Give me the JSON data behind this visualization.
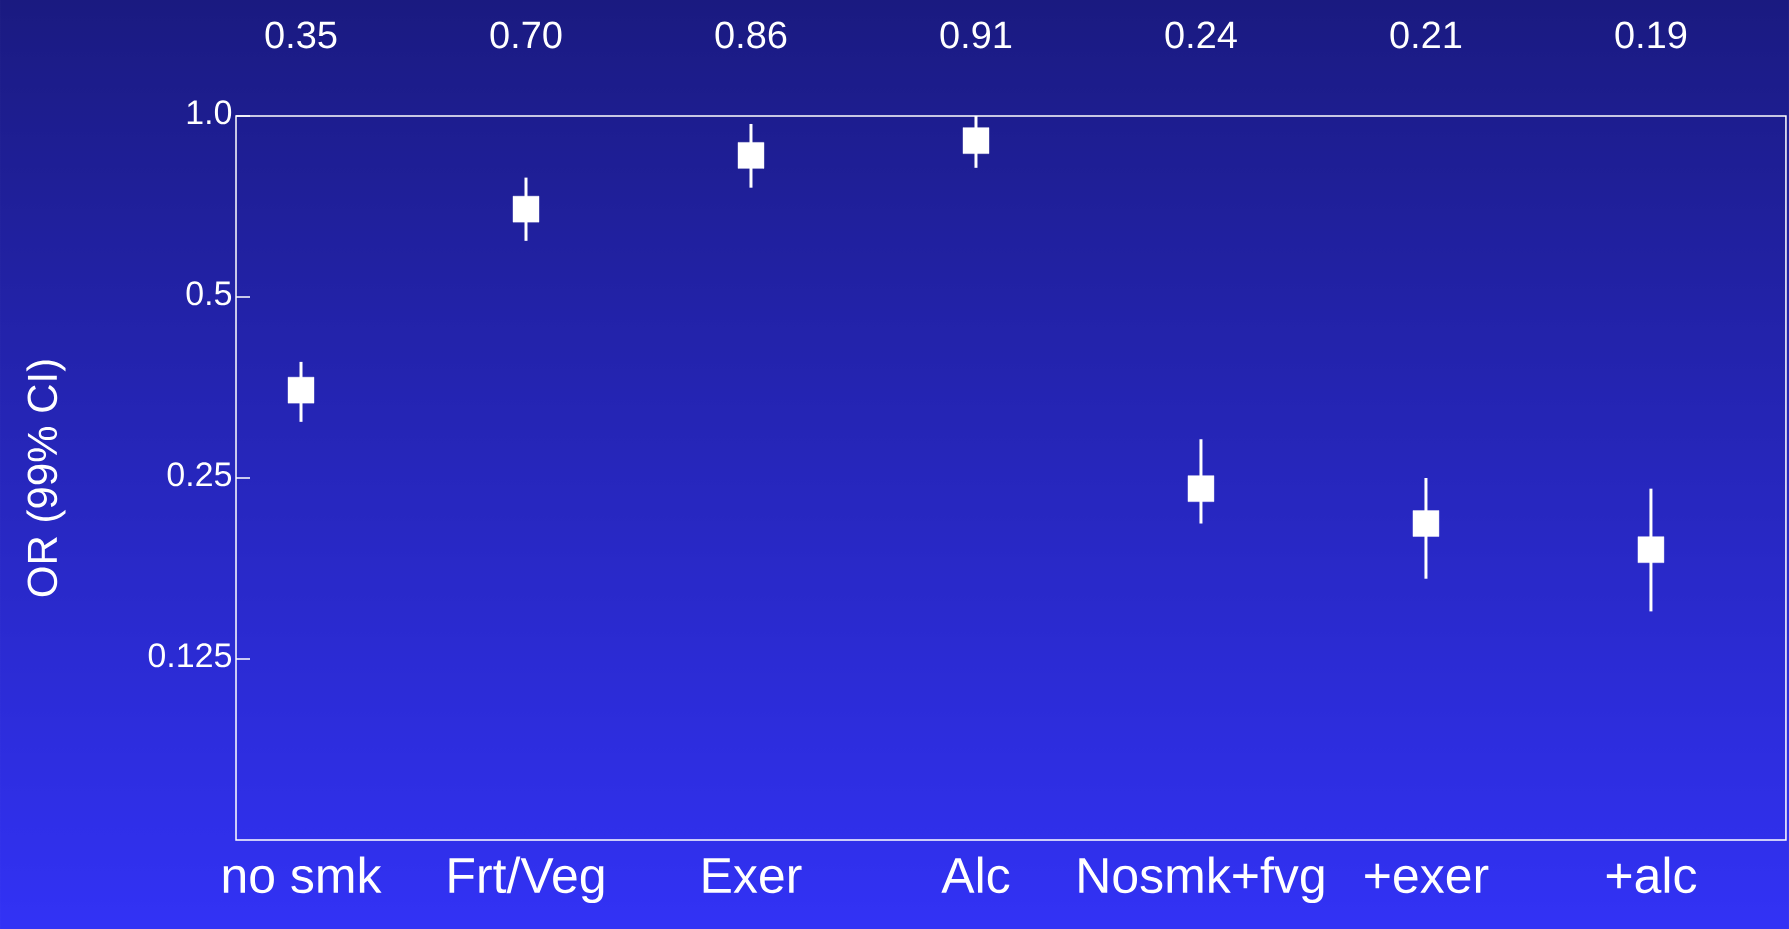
{
  "chart_data": {
    "type": "scatter",
    "ylabel": "OR (99% CI)",
    "categories": [
      "no smk",
      "Frt/Veg",
      "Exer",
      "Alc",
      "Nosmk+fvg",
      "+exer",
      "+alc"
    ],
    "values": [
      0.35,
      0.7,
      0.86,
      0.91,
      0.24,
      0.21,
      0.19
    ],
    "value_labels": [
      "0.35",
      "0.70",
      "0.86",
      "0.91",
      "0.24",
      "0.21",
      "0.19"
    ],
    "errors": [
      [
        0.31,
        0.39
      ],
      [
        0.62,
        0.79
      ],
      [
        0.76,
        0.97
      ],
      [
        0.82,
        1.0
      ],
      [
        0.21,
        0.29
      ],
      [
        0.17,
        0.25
      ],
      [
        0.15,
        0.24
      ]
    ],
    "color": "#ffffff",
    "marker": "square",
    "log": "y",
    "ylim": [
      0.0625,
      1.0
    ],
    "yticks": [
      {
        "value": 1.0,
        "label": "1.0"
      },
      0.5,
      0.25,
      0.125
    ],
    "grid": false
  }
}
